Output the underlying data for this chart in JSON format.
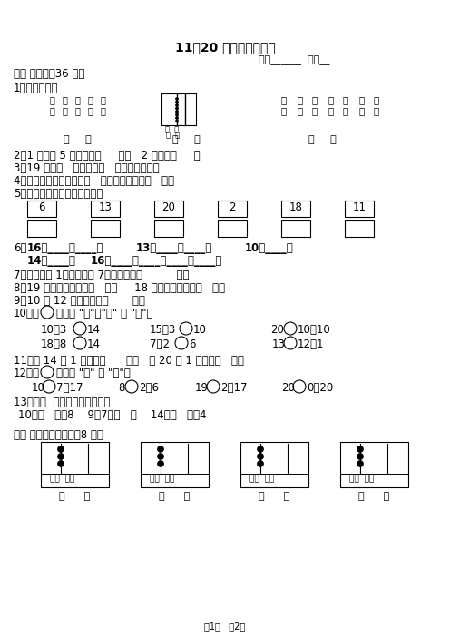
{
  "title": "11～20 各数的认识检测",
  "header_right": "班级______  姓名__",
  "section1": "一、 填空。（36 分）",
  "bg_color": "#ffffff",
  "text_color": "#000000"
}
